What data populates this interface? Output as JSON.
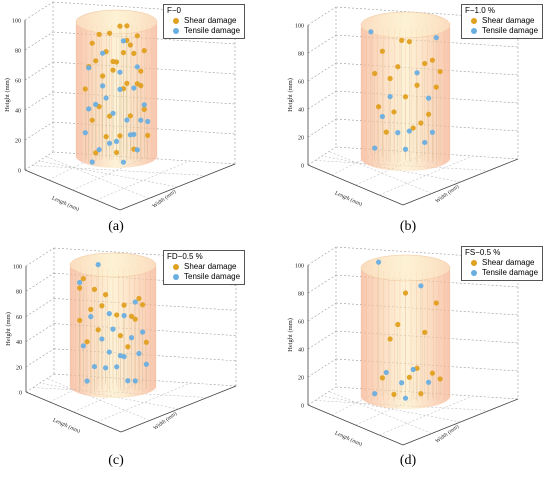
{
  "colors": {
    "shear": "#e0a020",
    "tensile": "#6aaee0",
    "cylinder_fill": "#fbe8b8",
    "cylinder_stripe": "#f3b080"
  },
  "chart_data": [
    {
      "type": "scatter",
      "panel": "(a)",
      "legend_title": "F−0",
      "zlabel": "Height (mm)",
      "xlabel": "Length (mm)",
      "ylabel": "Width (mm)",
      "zlim": [
        0,
        100
      ],
      "zticks": [
        0,
        20,
        40,
        60,
        80,
        100
      ],
      "grid": true,
      "legend_position": "top-right",
      "series": [
        {
          "name": "Shear damage",
          "points": [
            [
              0.1,
              0.2,
              97
            ],
            [
              0.3,
              -0.4,
              94
            ],
            [
              -0.5,
              0.3,
              92
            ],
            [
              0.6,
              0.1,
              90
            ],
            [
              -0.2,
              -0.6,
              88
            ],
            [
              0.4,
              0.5,
              86
            ],
            [
              -0.7,
              -0.1,
              84
            ],
            [
              0.2,
              0.7,
              82
            ],
            [
              -0.3,
              0.2,
              80
            ],
            [
              0.8,
              -0.3,
              78
            ],
            [
              -0.6,
              0.6,
              76
            ],
            [
              0.5,
              -0.7,
              74
            ],
            [
              0.0,
              0.0,
              72
            ],
            [
              -0.8,
              0.2,
              70
            ],
            [
              0.7,
              0.4,
              68
            ],
            [
              -0.1,
              -0.3,
              65
            ],
            [
              0.3,
              0.8,
              62
            ],
            [
              -0.4,
              -0.5,
              60
            ],
            [
              0.6,
              -0.1,
              57
            ],
            [
              -0.9,
              0.0,
              54
            ],
            [
              0.2,
              -0.8,
              50
            ],
            [
              -0.5,
              0.7,
              46
            ],
            [
              0.8,
              0.3,
              42
            ],
            [
              -0.2,
              0.4,
              38
            ],
            [
              0.4,
              -0.4,
              34
            ],
            [
              -0.7,
              -0.6,
              30
            ],
            [
              0.1,
              0.6,
              26
            ],
            [
              0.9,
              -0.2,
              22
            ],
            [
              -0.3,
              -0.8,
              18
            ],
            [
              0.5,
              0.2,
              15
            ],
            [
              -0.6,
              0.1,
              12
            ],
            [
              0.0,
              -0.5,
              9
            ],
            [
              0.3,
              0.3,
              88
            ],
            [
              -0.1,
              0.5,
              75
            ],
            [
              0.7,
              0.7,
              60
            ]
          ]
        },
        {
          "name": "Tensile damage",
          "points": [
            [
              0.2,
              -0.2,
              85
            ],
            [
              -0.4,
              0.4,
              80
            ],
            [
              0.6,
              0.6,
              72
            ],
            [
              -0.8,
              -0.4,
              66
            ],
            [
              0.1,
              0.8,
              58
            ],
            [
              0.5,
              -0.5,
              52
            ],
            [
              -0.3,
              0.0,
              48
            ],
            [
              0.8,
              0.1,
              44
            ],
            [
              -0.6,
              -0.7,
              40
            ],
            [
              0.3,
              0.5,
              36
            ],
            [
              -0.1,
              -0.9,
              33
            ],
            [
              0.7,
              -0.6,
              30
            ],
            [
              -0.9,
              0.4,
              27
            ],
            [
              0.4,
              0.1,
              24
            ],
            [
              -0.2,
              0.6,
              21
            ],
            [
              0.0,
              -0.2,
              18
            ],
            [
              0.6,
              0.3,
              15
            ],
            [
              -0.5,
              -0.3,
              12
            ],
            [
              0.2,
              0.9,
              10
            ],
            [
              -0.7,
              0.5,
              8
            ],
            [
              0.9,
              0.5,
              35
            ],
            [
              -0.4,
              -0.2,
              55
            ],
            [
              0.1,
              -0.6,
              62
            ],
            [
              -0.8,
              0.8,
              45
            ],
            [
              0.5,
              0.8,
              28
            ]
          ]
        }
      ]
    },
    {
      "type": "scatter",
      "panel": "(b)",
      "legend_title": "F−1.0 %",
      "zlabel": "Height (mm)",
      "xlabel": "Length (mm)",
      "ylabel": "Width (mm)",
      "zlim": [
        0,
        100
      ],
      "zticks": [
        0,
        20,
        40,
        60,
        80,
        100
      ],
      "grid": true,
      "legend_position": "top-right",
      "series": [
        {
          "name": "Shear damage",
          "points": [
            [
              0.1,
              0.3,
              90
            ],
            [
              -0.6,
              -0.2,
              80
            ],
            [
              0.7,
              0.5,
              78
            ],
            [
              -0.2,
              0.6,
              74
            ],
            [
              0.5,
              -0.4,
              70
            ],
            [
              -0.8,
              0.1,
              66
            ],
            [
              0.3,
              0.8,
              62
            ],
            [
              -0.4,
              -0.6,
              58
            ],
            [
              0.8,
              -0.1,
              55
            ],
            [
              0.0,
              0.2,
              50
            ],
            [
              -0.7,
              0.7,
              46
            ],
            [
              0.6,
              0.6,
              40
            ],
            [
              -0.3,
              -0.3,
              36
            ],
            [
              0.4,
              0.0,
              30
            ],
            [
              -0.5,
              0.4,
              26
            ],
            [
              0.2,
              -0.7,
              22
            ],
            [
              0.9,
              0.2,
              68
            ],
            [
              -0.1,
              -0.8,
              84
            ]
          ]
        },
        {
          "name": "Tensile damage",
          "points": [
            [
              0.8,
              0.8,
              96
            ],
            [
              -0.9,
              -0.5,
              92
            ],
            [
              0.3,
              -0.3,
              64
            ],
            [
              -0.4,
              0.5,
              52
            ],
            [
              0.6,
              -0.6,
              44
            ],
            [
              -0.6,
              -0.1,
              34
            ],
            [
              0.1,
              0.6,
              28
            ],
            [
              -0.2,
              -0.5,
              20
            ],
            [
              0.5,
              0.3,
              18
            ],
            [
              -0.8,
              0.3,
              14
            ],
            [
              0.0,
              -0.2,
              10
            ],
            [
              0.7,
              0.1,
              24
            ]
          ]
        }
      ]
    },
    {
      "type": "scatter",
      "panel": "(c)",
      "legend_title": "FD−0.5 %",
      "zlabel": "Height (mm)",
      "xlabel": "Length (mm)",
      "ylabel": "Width (mm)",
      "zlim": [
        0,
        100
      ],
      "zticks": [
        0,
        20,
        40,
        60,
        80,
        100
      ],
      "grid": true,
      "legend_position": "top-right",
      "series": [
        {
          "name": "Shear damage",
          "points": [
            [
              -0.8,
              0.0,
              90
            ],
            [
              -0.5,
              0.4,
              84
            ],
            [
              -0.9,
              -0.4,
              80
            ],
            [
              0.7,
              0.6,
              78
            ],
            [
              -0.2,
              -0.2,
              76
            ],
            [
              0.3,
              0.8,
              74
            ],
            [
              -0.6,
              0.7,
              70
            ],
            [
              0.8,
              -0.2,
              68
            ],
            [
              -0.3,
              -0.7,
              64
            ],
            [
              0.5,
              0.3,
              62
            ],
            [
              -0.9,
              0.5,
              60
            ],
            [
              0.1,
              -0.5,
              58
            ],
            [
              0.6,
              -0.6,
              54
            ],
            [
              -0.4,
              0.1,
              50
            ],
            [
              0.2,
              0.2,
              46
            ],
            [
              0.9,
              0.4,
              42
            ],
            [
              -0.7,
              -0.3,
              38
            ],
            [
              0.4,
              -0.3,
              34
            ]
          ]
        },
        {
          "name": "Tensile damage",
          "points": [
            [
              -0.4,
              -0.8,
              96
            ],
            [
              -0.9,
              0.8,
              92
            ],
            [
              0.6,
              0.1,
              72
            ],
            [
              -0.1,
              0.6,
              66
            ],
            [
              0.3,
              -0.1,
              60
            ],
            [
              -0.6,
              -0.6,
              56
            ],
            [
              0.8,
              0.7,
              52
            ],
            [
              0.0,
              -0.3,
              48
            ],
            [
              -0.3,
              0.3,
              44
            ],
            [
              0.5,
              -0.5,
              40
            ],
            [
              -0.8,
              -0.1,
              36
            ],
            [
              0.2,
              0.5,
              32
            ],
            [
              0.7,
              -0.4,
              28
            ],
            [
              -0.5,
              0.6,
              24
            ],
            [
              0.1,
              0.0,
              20
            ],
            [
              -0.2,
              -0.5,
              16
            ],
            [
              0.6,
              0.5,
              12
            ],
            [
              -0.7,
              0.2,
              10
            ],
            [
              0.4,
              0.8,
              14
            ],
            [
              0.9,
              0.0,
              22
            ],
            [
              -0.1,
              -0.9,
              26
            ],
            [
              0.3,
              0.3,
              30
            ]
          ]
        }
      ]
    },
    {
      "type": "scatter",
      "panel": "(d)",
      "legend_title": "FS−0.5 %",
      "zlabel": "Height (mm)",
      "xlabel": "Length (mm)",
      "ylabel": "Width (mm)",
      "zlim": [
        0,
        100
      ],
      "zticks": [
        0,
        20,
        40,
        60,
        80,
        100
      ],
      "grid": true,
      "legend_position": "top-right",
      "series": [
        {
          "name": "Shear damage",
          "points": [
            [
              0.0,
              0.0,
              80
            ],
            [
              0.8,
              0.5,
              76
            ],
            [
              -0.2,
              0.4,
              60
            ],
            [
              0.5,
              -0.3,
              50
            ],
            [
              -0.4,
              -0.5,
              44
            ],
            [
              0.3,
              0.6,
              30
            ],
            [
              0.7,
              0.2,
              24
            ],
            [
              -0.6,
              0.1,
              20
            ],
            [
              0.1,
              -0.6,
              16
            ],
            [
              0.9,
              -0.1,
              18
            ],
            [
              -0.3,
              0.7,
              12
            ],
            [
              0.4,
              0.3,
              10
            ]
          ]
        },
        {
          "name": "Tensile damage",
          "points": [
            [
              -0.7,
              -0.8,
              97
            ],
            [
              0.4,
              -0.5,
              82
            ],
            [
              0.2,
              0.1,
              26
            ],
            [
              -0.5,
              -0.2,
              22
            ],
            [
              0.6,
              0.6,
              20
            ],
            [
              -0.1,
              -0.3,
              14
            ],
            [
              0.0,
              0.5,
              8
            ],
            [
              -0.8,
              0.3,
              10
            ]
          ]
        }
      ]
    }
  ]
}
